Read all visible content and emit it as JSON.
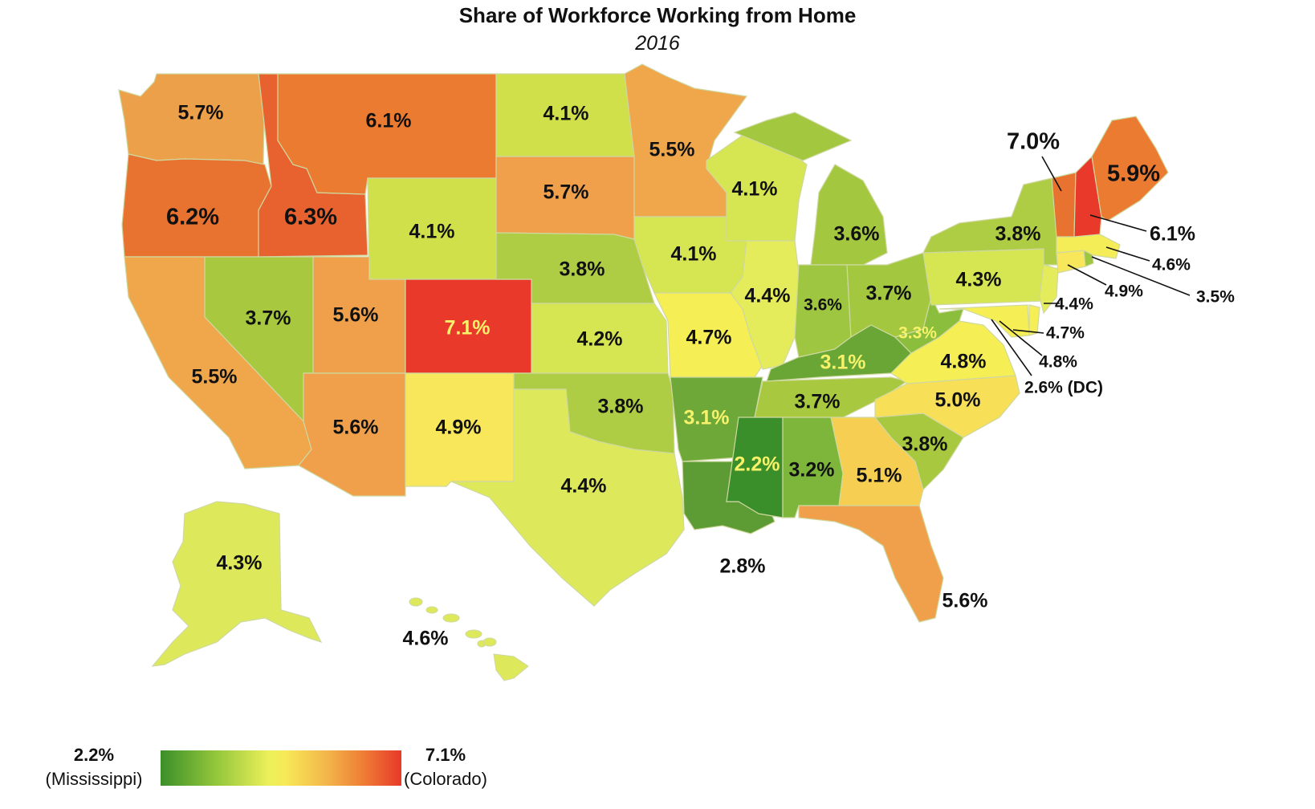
{
  "title": "Share of Workforce Working from Home",
  "subtitle": "2016",
  "legend": {
    "min_value": "2.2%",
    "min_label": "(Mississippi)",
    "max_value": "7.1%",
    "max_label": "(Colorado)",
    "min_color": "#3b8f2a",
    "mid_color": "#f7e957",
    "max_color": "#e8392a"
  },
  "labels": {
    "wa": "5.7%",
    "mt": "6.1%",
    "nd": "4.1%",
    "mn": "5.5%",
    "or": "6.2%",
    "id": "6.3%",
    "wy": "4.1%",
    "sd": "5.7%",
    "wi": "4.1%",
    "mi": "3.6%",
    "vt": "7.0%",
    "me": "5.9%",
    "nh": "6.1%",
    "ny": "3.8%",
    "ma": "4.6%",
    "ct": "4.9%",
    "ri": "3.5%",
    "ne": "3.8%",
    "ia": "4.1%",
    "pa": "4.3%",
    "nj": "4.4%",
    "de": "4.7%",
    "md": "4.8%",
    "dc": "2.6% (DC)",
    "nv": "3.7%",
    "ut": "5.6%",
    "co": "7.1%",
    "ks": "4.2%",
    "mo": "4.7%",
    "il": "4.4%",
    "in": "3.6%",
    "oh": "3.7%",
    "wv": "3.3%",
    "ky": "3.1%",
    "va": "4.8%",
    "ca": "5.5%",
    "az": "5.6%",
    "nm": "4.9%",
    "ok": "3.8%",
    "ar": "3.1%",
    "tn": "3.7%",
    "nc": "5.0%",
    "sc": "3.8%",
    "ms": "2.2%",
    "al": "3.2%",
    "ga": "5.1%",
    "tx": "4.4%",
    "la": "2.8%",
    "fl": "5.6%",
    "ak": "4.3%",
    "hi": "4.6%"
  }
}
